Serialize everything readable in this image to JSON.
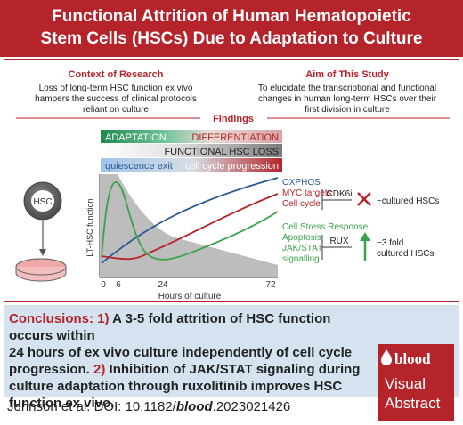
{
  "title": {
    "line1": "Functional Attrition of Human Hematopoietic",
    "line2": "Stem Cells (HSCs) Due to Adaptation to Culture"
  },
  "context": {
    "heading": "Context of Research",
    "lines": [
      "Loss of long-term HSC function ex vivo",
      "hampers the success of clinical protocols",
      "reliant on culture"
    ]
  },
  "aim": {
    "heading": "Aim of This Study",
    "lines": [
      "To elucidate the transcriptional and functional",
      "changes in human long-term HSCs over their",
      "first division in culture"
    ]
  },
  "findings": {
    "heading": "Findings",
    "bar1_left": "ADAPTATION",
    "bar1_right": "DIFFERENTIATION",
    "bar2": "FUNCTIONAL HSC LOSS",
    "bar3_left": "quiescence exit",
    "bar3_right": "cell cycle progression",
    "hsc_label": "HSC",
    "y_axis_label": "LT-HSC function",
    "x_axis_label": "Hours of culture",
    "ticks": [
      "0",
      "6",
      "24",
      "72"
    ],
    "upper_labels": [
      "OXPHOS",
      "MYC targets",
      "Cell cycle"
    ],
    "lower_labels": [
      "Cell Stress Response",
      "Apoptosis",
      "JAK/STAT",
      "signalling"
    ],
    "inhibitor_upper": "CDK6i",
    "inhibitor_lower": "RUX",
    "outcome_upper": "~cultured HSCs",
    "outcome_lower_1": "~3 fold",
    "outcome_lower_2": "cultured HSCs",
    "colors": {
      "blue": "#2a5a96",
      "red": "#b5242a",
      "green": "#3aa24a",
      "grey": "#bdbdbd"
    }
  },
  "conclusions": {
    "label": "Conclusions:",
    "n1": "1)",
    "t1a": "A 3-5 fold attrition of HSC function occurs within",
    "t1b": "24 hours of ex vivo culture independently of cell cycle",
    "t1c": "progression.",
    "n2": "2)",
    "t2a": "Inhibition of JAK/STAT signaling during",
    "t2b": "culture adaptation through ruxolitinib improves HSC",
    "t2c": "function ex vivo."
  },
  "brand": {
    "name": "blood",
    "line1": "Visual",
    "line2": "Abstract"
  },
  "citation": {
    "prefix": "Johnson et al. DOI: 10.1182/",
    "journal": "blood",
    "suffix": ".2023021426"
  }
}
